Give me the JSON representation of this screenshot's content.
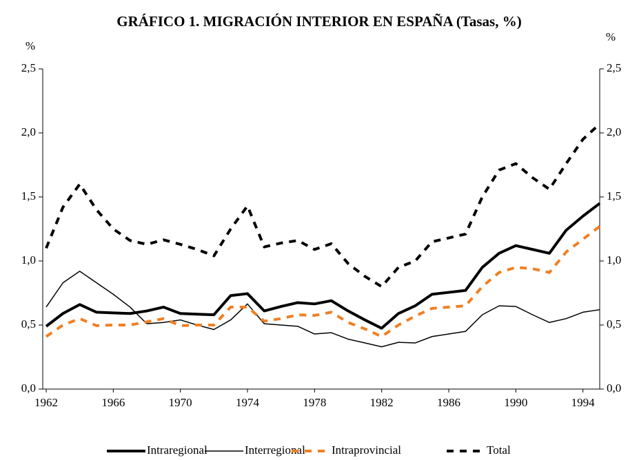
{
  "chart_data": {
    "type": "line",
    "title": "GRÁFICO 1. MIGRACIÓN INTERIOR EN ESPAÑA (Tasas, %)",
    "y_label": "%",
    "y2_label": "%",
    "x": [
      1962,
      1963,
      1964,
      1965,
      1966,
      1967,
      1968,
      1969,
      1970,
      1971,
      1972,
      1973,
      1974,
      1975,
      1976,
      1977,
      1978,
      1979,
      1980,
      1981,
      1982,
      1983,
      1984,
      1985,
      1986,
      1987,
      1988,
      1989,
      1990,
      1991,
      1992,
      1993,
      1994,
      1995
    ],
    "xlim": [
      1962,
      1995
    ],
    "xticks": [
      1962,
      1966,
      1970,
      1974,
      1978,
      1982,
      1986,
      1990,
      1994
    ],
    "ylim": [
      0,
      2.5
    ],
    "yticks": [
      {
        "value": 0,
        "label": "0,0"
      },
      {
        "value": 0.5,
        "label": "0,5"
      },
      {
        "value": 1,
        "label": "1,0"
      },
      {
        "value": 1.5,
        "label": "1,5"
      },
      {
        "value": 2,
        "label": "2,0"
      },
      {
        "value": 2.5,
        "label": "2,5"
      }
    ],
    "y2lim": [
      0,
      2.5
    ],
    "y2ticks": [
      {
        "value": 0,
        "label": "0,0"
      },
      {
        "value": 0.5,
        "label": "0,5"
      },
      {
        "value": 1,
        "label": "1,0"
      },
      {
        "value": 1.5,
        "label": "1,5"
      },
      {
        "value": 2,
        "label": "2,0"
      },
      {
        "value": 2.5,
        "label": "2,5"
      }
    ],
    "grid": false,
    "legend": "bottom",
    "series": [
      {
        "name": "Intraregional",
        "color": "#000000",
        "line_width": 4,
        "dashed": false,
        "values": [
          0.49,
          0.59,
          0.66,
          0.6,
          0.595,
          0.59,
          0.61,
          0.64,
          0.59,
          0.585,
          0.58,
          0.73,
          0.745,
          0.61,
          0.645,
          0.675,
          0.665,
          0.69,
          0.61,
          0.54,
          0.475,
          0.59,
          0.65,
          0.74,
          0.755,
          0.77,
          0.95,
          1.06,
          1.12,
          1.09,
          1.06,
          1.24,
          1.35,
          1.45
        ]
      },
      {
        "name": "Interregional",
        "color": "#000000",
        "line_width": 1.5,
        "dashed": false,
        "values": [
          0.64,
          0.83,
          0.92,
          0.83,
          0.74,
          0.64,
          0.51,
          0.52,
          0.54,
          0.5,
          0.465,
          0.54,
          0.665,
          0.51,
          0.5,
          0.49,
          0.43,
          0.44,
          0.39,
          0.36,
          0.33,
          0.365,
          0.36,
          0.41,
          0.43,
          0.45,
          0.58,
          0.65,
          0.645,
          0.58,
          0.52,
          0.55,
          0.6,
          0.62
        ]
      },
      {
        "name": "Intraprovincial",
        "color": "#f07f22",
        "line_width": 4,
        "dashed": true,
        "values": [
          0.41,
          0.5,
          0.55,
          0.495,
          0.5,
          0.5,
          0.525,
          0.55,
          0.495,
          0.5,
          0.5,
          0.64,
          0.64,
          0.53,
          0.55,
          0.58,
          0.575,
          0.6,
          0.52,
          0.47,
          0.41,
          0.5,
          0.57,
          0.63,
          0.64,
          0.65,
          0.8,
          0.91,
          0.95,
          0.94,
          0.91,
          1.07,
          1.17,
          1.27
        ]
      },
      {
        "name": "Total",
        "color": "#000000",
        "line_width": 4,
        "dashed": true,
        "values": [
          1.1,
          1.42,
          1.6,
          1.4,
          1.25,
          1.16,
          1.13,
          1.165,
          1.13,
          1.09,
          1.04,
          1.25,
          1.43,
          1.11,
          1.14,
          1.16,
          1.09,
          1.135,
          0.98,
          0.88,
          0.8,
          0.95,
          1.0,
          1.15,
          1.18,
          1.21,
          1.5,
          1.71,
          1.76,
          1.65,
          1.56,
          1.76,
          1.95,
          2.07
        ]
      }
    ]
  }
}
